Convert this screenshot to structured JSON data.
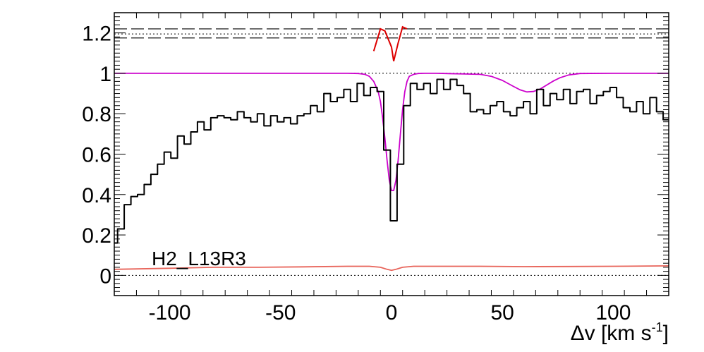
{
  "chart_data": {
    "type": "line",
    "title": "",
    "annotation": "H2_L13R3",
    "xlabel": "Δv [km s⁻¹]",
    "xlabel_main": "Δv [km s",
    "xlabel_sup": "-1",
    "xlabel_close": "]",
    "ylabel": "",
    "xlim": [
      -125,
      125
    ],
    "ylim": [
      -0.1,
      1.3
    ],
    "grid": false,
    "x_ticks": [
      -100,
      -50,
      0,
      50,
      100
    ],
    "x_tick_labels": [
      "-100",
      "-50",
      "0",
      "50",
      "100"
    ],
    "y_ticks": [
      0,
      0.2,
      0.4,
      0.6,
      0.8,
      1,
      1.2
    ],
    "y_tick_labels": [
      "0",
      "0.2",
      "0.4",
      "0.6",
      "0.8",
      "1",
      "1.2"
    ],
    "colors": {
      "flux": "#000000",
      "model": "#cc00cc",
      "error": "#e8645a",
      "component_marker": "#dd0000",
      "reference": "#000000"
    },
    "reference_lines": {
      "dotted": [
        0,
        1,
        1.195
      ],
      "dashed": [
        1.175,
        1.22
      ]
    },
    "component_marker": {
      "x": [
        -8,
        -5,
        -3,
        0,
        1,
        3,
        5,
        7
      ],
      "y": [
        1.11,
        1.22,
        1.21,
        1.13,
        1.06,
        1.15,
        1.23,
        1.22
      ]
    },
    "series": [
      {
        "name": "flux",
        "step": true,
        "x": [
          -125,
          -122,
          -119,
          -116,
          -113,
          -110,
          -107,
          -104,
          -101,
          -98,
          -95,
          -92,
          -89,
          -86,
          -83,
          -80,
          -77,
          -74,
          -71,
          -68,
          -65,
          -62,
          -59,
          -56,
          -53,
          -50,
          -47,
          -44,
          -41,
          -38,
          -35,
          -32,
          -29,
          -26,
          -23,
          -20,
          -17,
          -14,
          -11,
          -8,
          -5,
          -2,
          1,
          4,
          7,
          10,
          13,
          16,
          19,
          22,
          25,
          28,
          31,
          34,
          37,
          40,
          43,
          46,
          49,
          52,
          55,
          58,
          61,
          64,
          67,
          70,
          73,
          76,
          79,
          82,
          85,
          88,
          91,
          94,
          97,
          100,
          103,
          106,
          109,
          112,
          115,
          118,
          121,
          124
        ],
        "y": [
          0.16,
          0.23,
          0.35,
          0.39,
          0.4,
          0.45,
          0.5,
          0.55,
          0.61,
          0.58,
          0.69,
          0.65,
          0.71,
          0.76,
          0.72,
          0.78,
          0.79,
          0.78,
          0.77,
          0.81,
          0.78,
          0.76,
          0.8,
          0.74,
          0.79,
          0.76,
          0.78,
          0.75,
          0.79,
          0.8,
          0.84,
          0.81,
          0.9,
          0.86,
          0.88,
          0.92,
          0.86,
          0.95,
          0.89,
          0.93,
          0.91,
          0.62,
          0.27,
          0.55,
          0.84,
          0.95,
          0.92,
          0.95,
          0.9,
          0.97,
          0.92,
          0.97,
          0.94,
          0.9,
          0.81,
          0.82,
          0.8,
          0.84,
          0.86,
          0.81,
          0.79,
          0.83,
          0.86,
          0.8,
          0.92,
          0.84,
          0.9,
          0.87,
          0.92,
          0.85,
          0.91,
          0.92,
          0.85,
          0.89,
          0.91,
          0.93,
          0.88,
          0.83,
          0.81,
          0.86,
          0.8,
          0.88,
          0.81,
          0.77
        ]
      },
      {
        "name": "model",
        "step": false,
        "x": [
          -125,
          -20,
          -15,
          -12,
          -10,
          -8,
          -6,
          -5,
          -4,
          -3,
          -2,
          -1,
          0,
          1,
          2,
          3,
          4,
          5,
          6,
          7,
          8,
          10,
          12,
          15,
          20,
          40,
          45,
          50,
          55,
          58,
          61,
          64,
          67,
          70,
          73,
          76,
          80,
          85,
          100,
          125
        ],
        "y": [
          1,
          1,
          0.999,
          0.995,
          0.985,
          0.96,
          0.91,
          0.86,
          0.78,
          0.68,
          0.57,
          0.47,
          0.42,
          0.42,
          0.47,
          0.57,
          0.7,
          0.82,
          0.91,
          0.96,
          0.985,
          0.995,
          0.999,
          1,
          1,
          0.995,
          0.985,
          0.965,
          0.935,
          0.918,
          0.908,
          0.91,
          0.922,
          0.942,
          0.962,
          0.978,
          0.992,
          0.999,
          1,
          1
        ]
      },
      {
        "name": "error",
        "step": false,
        "x": [
          -125,
          -100,
          -80,
          -60,
          -40,
          -20,
          -10,
          -5,
          -2,
          0,
          2,
          5,
          10,
          20,
          40,
          60,
          80,
          100,
          125
        ],
        "y": [
          0.03,
          0.035,
          0.04,
          0.04,
          0.042,
          0.045,
          0.045,
          0.04,
          0.03,
          0.025,
          0.03,
          0.04,
          0.045,
          0.045,
          0.045,
          0.043,
          0.044,
          0.045,
          0.047
        ]
      }
    ]
  }
}
